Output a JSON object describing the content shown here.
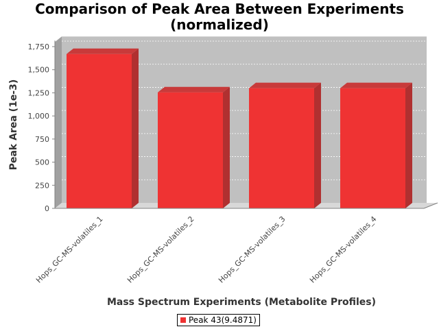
{
  "chart_data": {
    "type": "bar",
    "title": "Comparison of Peak Area Between Experiments",
    "subtitle": "(normalized)",
    "xlabel": "Mass Spectrum Experiments (Metabolite Profiles)",
    "ylabel": "Peak Area (1e-3)",
    "categories": [
      "Hops_GC-MS-volatiles_1",
      "Hops_GC-MS-volatiles_2",
      "Hops_GC-MS-volatiles_3",
      "Hops_GC-MS-volatiles_4"
    ],
    "series": [
      {
        "name": "Peak 43(9.4871)",
        "values": [
          1670,
          1255,
          1300,
          1300
        ],
        "color": "#ef3333"
      }
    ],
    "ylim": [
      0,
      1800
    ],
    "yticks": [
      "0",
      "250",
      "500",
      "750",
      "1,000",
      "1,250",
      "1,500",
      "1,750"
    ],
    "ytick_values": [
      0,
      250,
      500,
      750,
      1000,
      1250,
      1500,
      1750
    ],
    "grid": true,
    "legend_position": "bottom",
    "colors": {
      "plot_background": "#c0c0c0",
      "plot_wall_side": "#a0a0a0",
      "plot_floor": "#d8d8d8",
      "bar_side": "#b03030",
      "bar_top": "#c83a3a",
      "gridline": "#ffffff"
    }
  }
}
